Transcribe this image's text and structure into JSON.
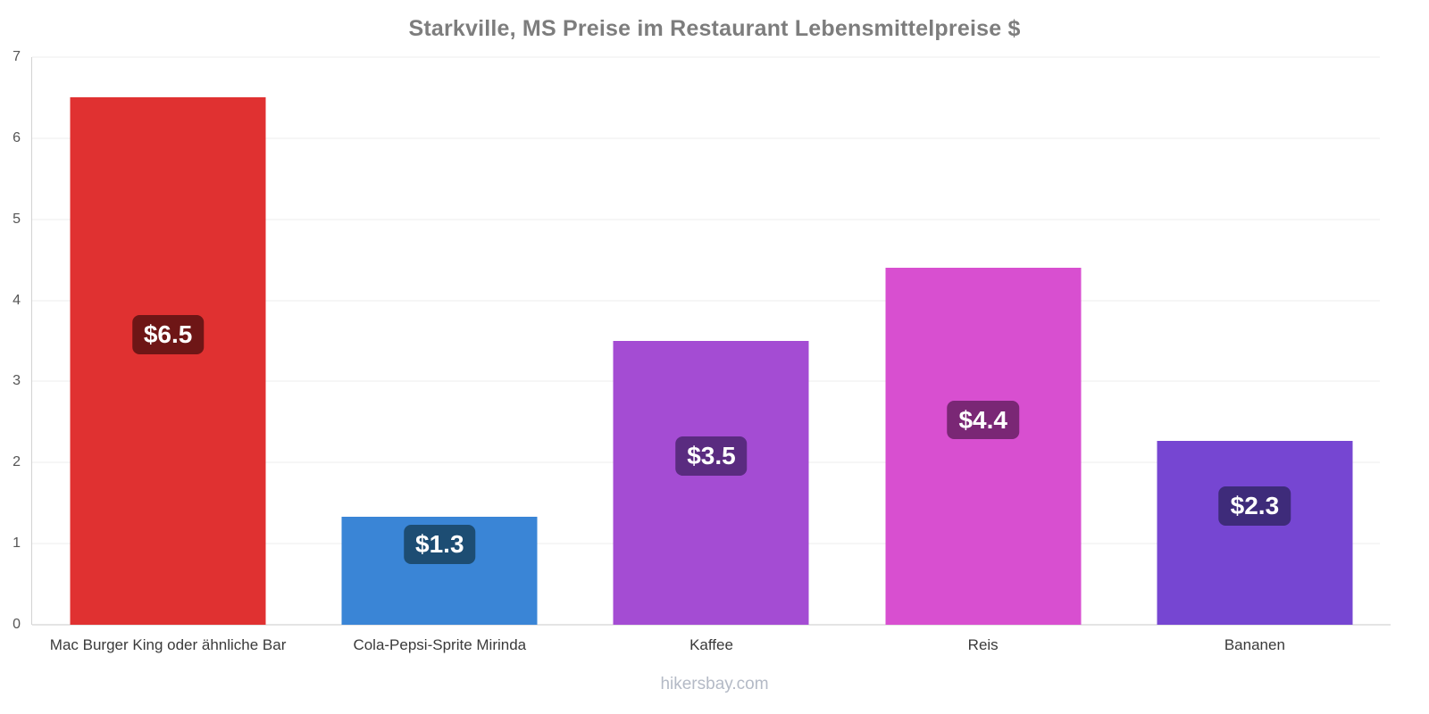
{
  "title": "Starkville, MS Preise im Restaurant Lebensmittelpreise $",
  "footer": "hikersbay.com",
  "chart_data": {
    "type": "bar",
    "title": "Starkville, MS Preise im Restaurant Lebensmittelpreise $",
    "categories": [
      "Mac Burger King oder ähnliche Bar",
      "Cola-Pepsi-Sprite Mirinda",
      "Kaffee",
      "Reis",
      "Bananen"
    ],
    "values": [
      6.5,
      1.33,
      3.5,
      4.4,
      2.27
    ],
    "value_labels": [
      "$6.5",
      "$1.3",
      "$3.5",
      "$4.4",
      "$2.3"
    ],
    "bar_colors": [
      "#e03131",
      "#3a85d6",
      "#a44cd3",
      "#d84fd0",
      "#7646d2"
    ],
    "label_bg_colors": [
      "#6e1616",
      "#1d4d73",
      "#5a2b80",
      "#7a2775",
      "#3e2b7a"
    ],
    "xlabel": "",
    "ylabel": "",
    "ylim": [
      0,
      7
    ],
    "yticks": [
      0,
      1,
      2,
      3,
      4,
      5,
      6,
      7
    ],
    "grid": true,
    "legend": false,
    "currency": "$"
  }
}
